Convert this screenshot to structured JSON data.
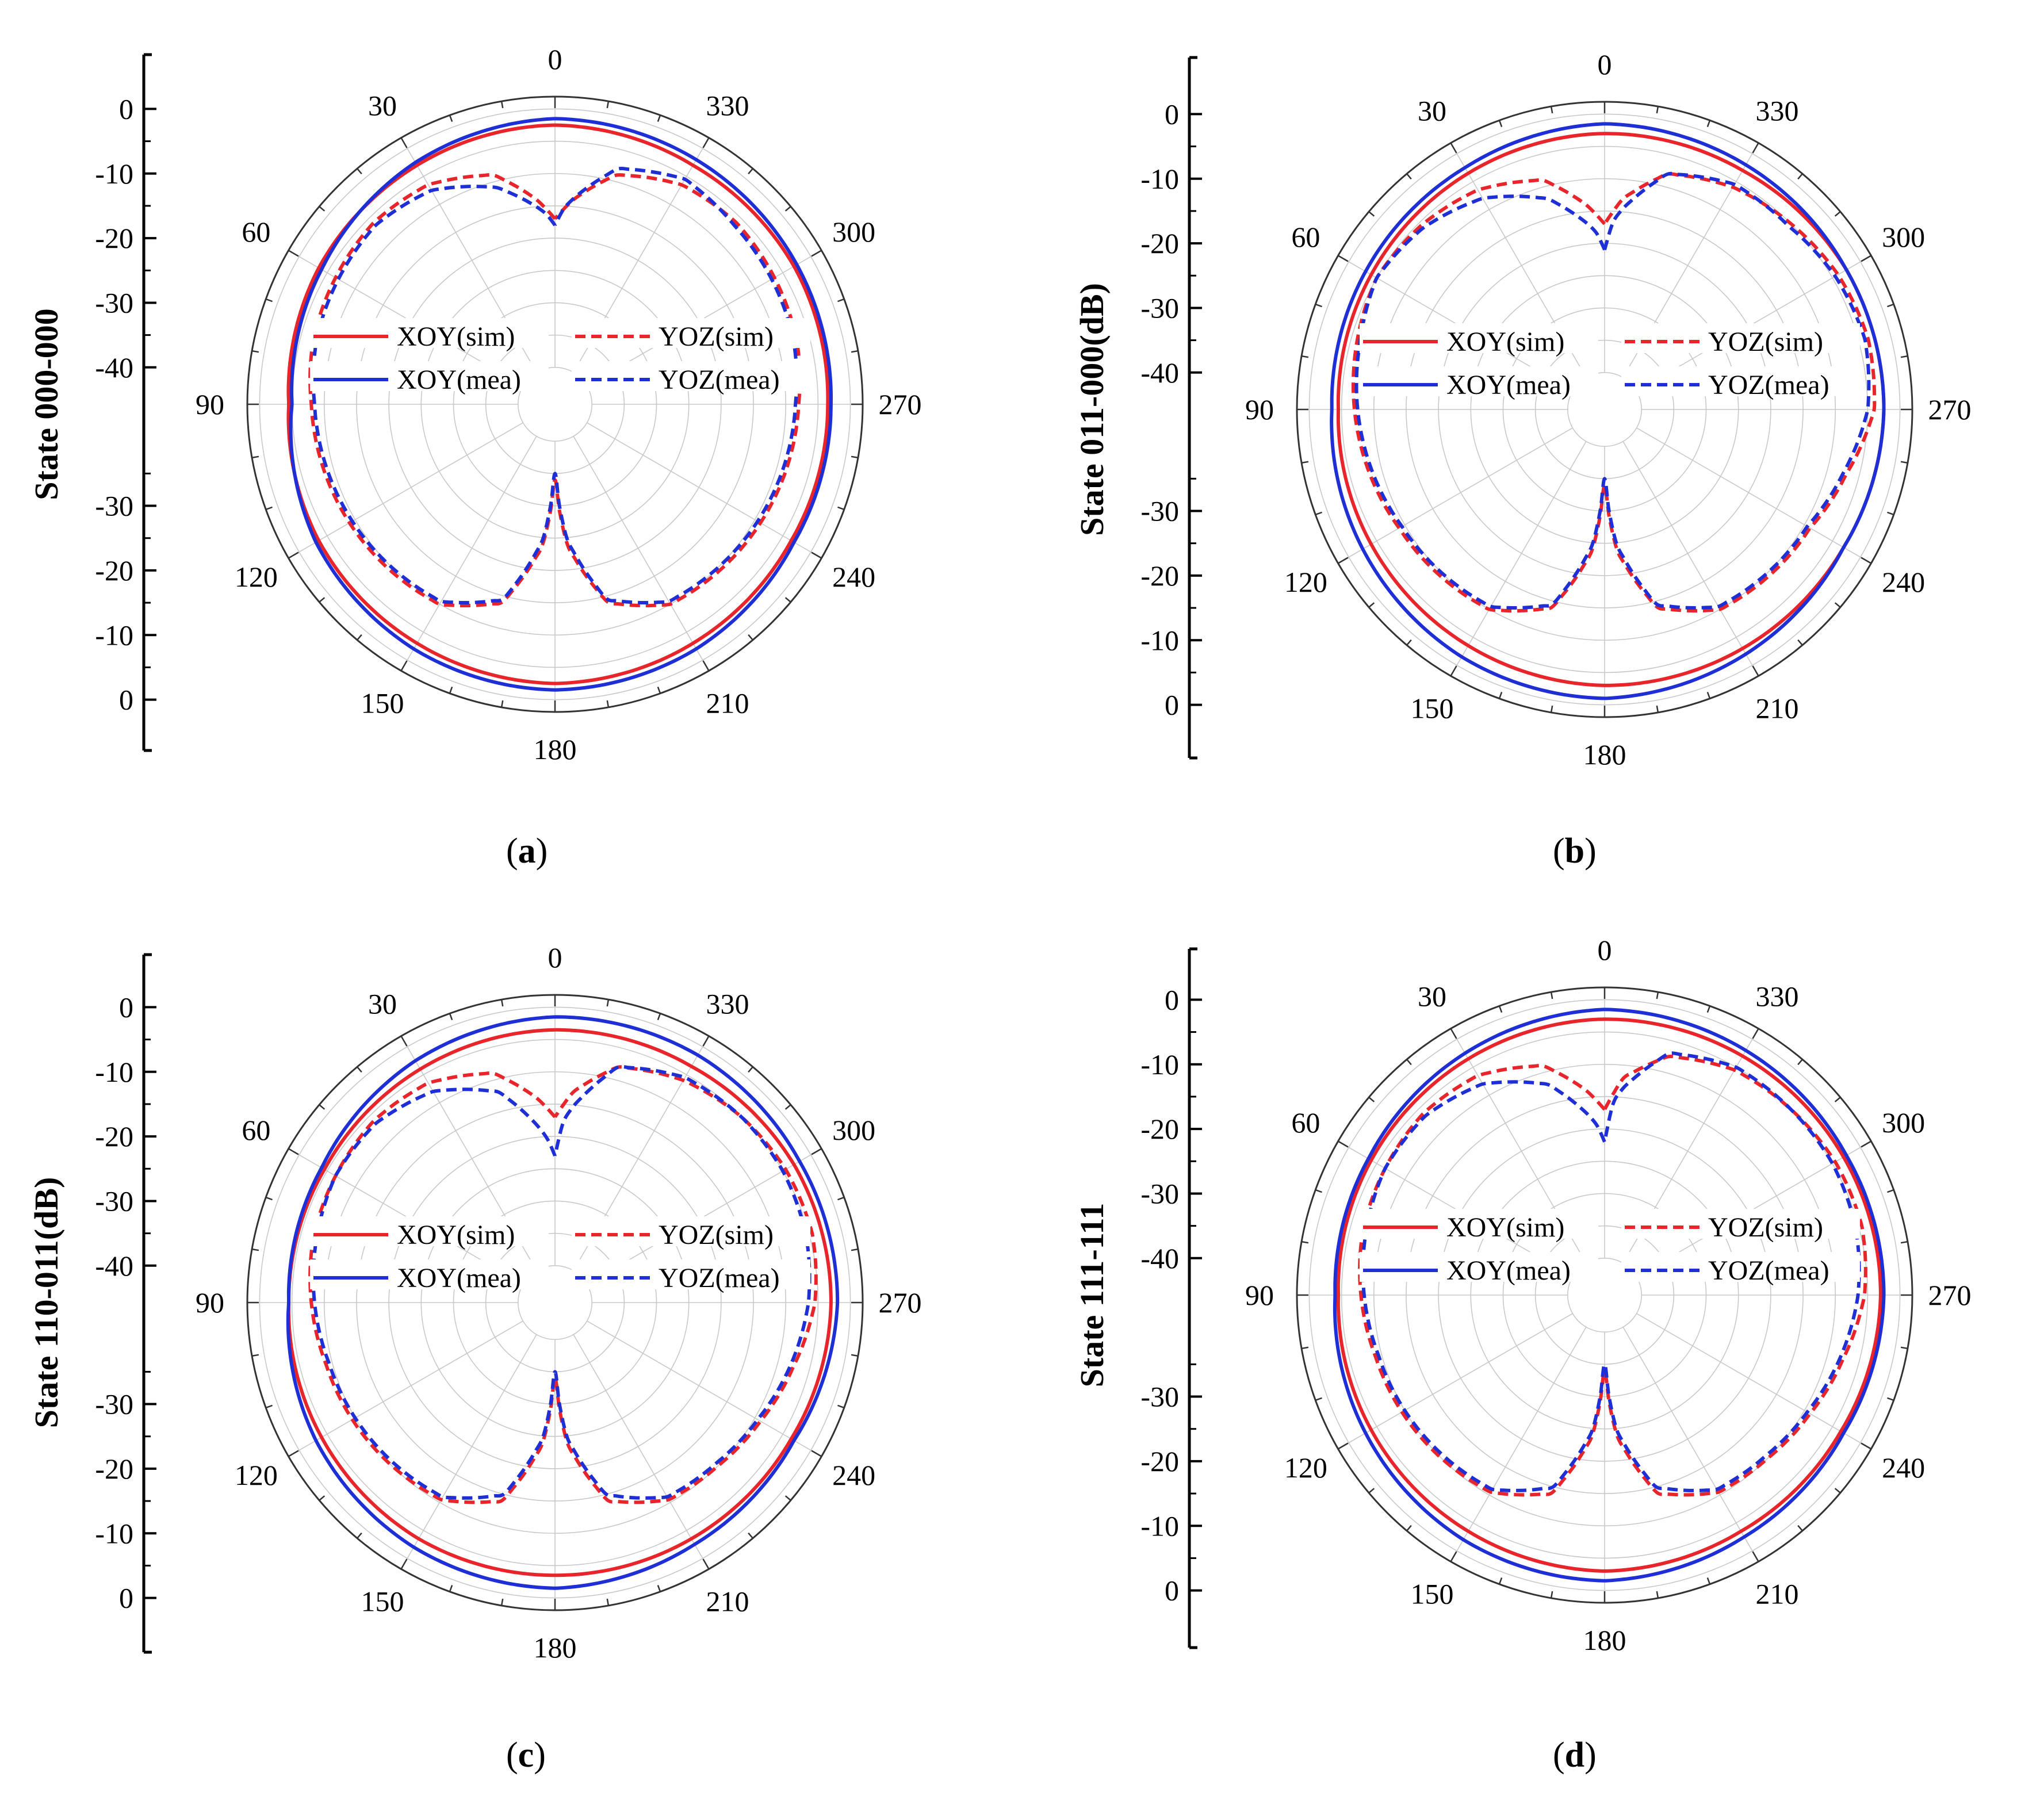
{
  "chart_data": [
    {
      "id": "a",
      "type": "polar-line",
      "panel_label": "a",
      "ylabel": "State 000-000",
      "angle_tick_labels": [
        "0",
        "30",
        "60",
        "90",
        "120",
        "150",
        "180",
        "210",
        "240",
        "270",
        "300",
        "330"
      ],
      "radial_tick_labels_upper": [
        "0",
        "-10",
        "-20",
        "-30",
        "-40"
      ],
      "radial_tick_labels_lower": [
        "-30",
        "-20",
        "-10",
        "0"
      ],
      "radial_range_db": [
        -40,
        0
      ],
      "legend": [
        "XOY(sim)",
        "XOY(mea)",
        "YOZ(sim)",
        "YOZ(mea)"
      ],
      "series": [
        {
          "name": "XOY(sim)",
          "color": "#e8252b",
          "dash": false,
          "angles": [
            0,
            30,
            60,
            90,
            120,
            150,
            180,
            210,
            240,
            270,
            300,
            330,
            360
          ],
          "values": [
            -2.5,
            -3,
            -3.5,
            -4.5,
            -3.5,
            -3,
            -2.5,
            -3,
            -3.5,
            -3.5,
            -3,
            -3,
            -2.5
          ]
        },
        {
          "name": "XOY(mea)",
          "color": "#1f2fd6",
          "dash": false,
          "angles": [
            0,
            30,
            60,
            90,
            120,
            150,
            180,
            210,
            240,
            270,
            300,
            330,
            360
          ],
          "values": [
            -1.5,
            -2.5,
            -4,
            -5,
            -3,
            -2,
            -1.5,
            -2,
            -3,
            -3,
            -2.5,
            -2,
            -1.5
          ]
        },
        {
          "name": "YOZ(sim)",
          "color": "#e8252b",
          "dash": true,
          "angles": [
            0,
            5,
            15,
            30,
            45,
            60,
            75,
            90,
            105,
            120,
            135,
            150,
            165,
            175,
            180,
            185,
            195,
            210,
            225,
            240,
            255,
            270,
            285,
            300,
            315,
            330,
            345,
            355,
            360
          ],
          "values": [
            -17,
            -14,
            -9,
            -6.5,
            -6,
            -6.5,
            -7,
            -8,
            -8.5,
            -9,
            -9.5,
            -10,
            -14,
            -24,
            -34,
            -24,
            -14,
            -10,
            -9.5,
            -9,
            -8.5,
            -8,
            -7,
            -6.5,
            -6,
            -6.5,
            -9,
            -14,
            -17
          ]
        },
        {
          "name": "YOZ(mea)",
          "color": "#1f2fd6",
          "dash": true,
          "angles": [
            0,
            3,
            15,
            30,
            45,
            60,
            75,
            90,
            105,
            120,
            135,
            150,
            165,
            175,
            180,
            185,
            195,
            210,
            225,
            240,
            255,
            270,
            285,
            300,
            315,
            330,
            345,
            357,
            360
          ],
          "values": [
            -18,
            -16,
            -11,
            -7.5,
            -6.5,
            -7,
            -7.5,
            -8.5,
            -9,
            -9.5,
            -10,
            -10.5,
            -14.5,
            -25,
            -35,
            -25,
            -14.5,
            -10.5,
            -10,
            -9.5,
            -9,
            -8.5,
            -7.5,
            -7,
            -6.5,
            -5.5,
            -8,
            -15,
            -18
          ]
        }
      ]
    },
    {
      "id": "b",
      "type": "polar-line",
      "panel_label": "b",
      "ylabel": "State 011-000(dB)",
      "angle_tick_labels": [
        "0",
        "30",
        "60",
        "90",
        "120",
        "150",
        "180",
        "210",
        "240",
        "270",
        "300",
        "330"
      ],
      "radial_tick_labels_upper": [
        "0",
        "-10",
        "-20",
        "-30",
        "-40"
      ],
      "radial_tick_labels_lower": [
        "-30",
        "-20",
        "-10",
        "0"
      ],
      "radial_range_db": [
        -40,
        0
      ],
      "legend": [
        "XOY(sim)",
        "XOY(mea)",
        "YOZ(sim)",
        "YOZ(mea)"
      ],
      "series": [
        {
          "name": "XOY(sim)",
          "color": "#e8252b",
          "dash": false,
          "angles": [
            0,
            30,
            60,
            90,
            120,
            150,
            180,
            210,
            240,
            270,
            300,
            330,
            360
          ],
          "values": [
            -3,
            -3.5,
            -4,
            -4.5,
            -4,
            -3.5,
            -3,
            -3,
            -3,
            -2.5,
            -2.5,
            -3,
            -3
          ]
        },
        {
          "name": "XOY(mea)",
          "color": "#1f2fd6",
          "dash": false,
          "angles": [
            0,
            30,
            60,
            90,
            120,
            150,
            180,
            210,
            240,
            270,
            300,
            330,
            360
          ],
          "values": [
            -1.5,
            -2.5,
            -3,
            -3.5,
            -2.5,
            -1.5,
            -1,
            -2,
            -3,
            -2.5,
            -2.5,
            -2,
            -1.5
          ]
        },
        {
          "name": "YOZ(sim)",
          "color": "#e8252b",
          "dash": true,
          "angles": [
            0,
            5,
            15,
            30,
            45,
            60,
            75,
            90,
            105,
            120,
            135,
            150,
            165,
            175,
            180,
            185,
            195,
            210,
            225,
            240,
            255,
            270,
            285,
            300,
            315,
            330,
            345,
            355,
            360
          ],
          "values": [
            -17,
            -14,
            -9,
            -6.5,
            -5.5,
            -5,
            -6,
            -7,
            -8,
            -9,
            -9.5,
            -10,
            -14,
            -24,
            -34,
            -24,
            -14,
            -10,
            -9.5,
            -9,
            -7,
            -4,
            -3.5,
            -4,
            -5,
            -6,
            -8,
            -13,
            -17
          ]
        },
        {
          "name": "YOZ(mea)",
          "color": "#1f2fd6",
          "dash": true,
          "angles": [
            0,
            3,
            15,
            30,
            45,
            60,
            75,
            90,
            105,
            120,
            135,
            150,
            165,
            175,
            180,
            185,
            195,
            210,
            225,
            240,
            255,
            270,
            285,
            300,
            315,
            330,
            345,
            357,
            360
          ],
          "values": [
            -21,
            -18,
            -12,
            -8,
            -6,
            -5,
            -6.5,
            -7.5,
            -8.5,
            -9.5,
            -10,
            -10.5,
            -14.5,
            -25,
            -35,
            -25,
            -14.5,
            -10.5,
            -10,
            -9.5,
            -7.5,
            -5,
            -4,
            -4.5,
            -5.5,
            -5.5,
            -8,
            -16,
            -21
          ]
        }
      ]
    },
    {
      "id": "c",
      "type": "polar-line",
      "panel_label": "c",
      "ylabel": "State 110-011(dB)",
      "angle_tick_labels": [
        "0",
        "30",
        "60",
        "90",
        "120",
        "150",
        "180",
        "210",
        "240",
        "270",
        "300",
        "330"
      ],
      "radial_tick_labels_upper": [
        "0",
        "-10",
        "-20",
        "-30",
        "-40"
      ],
      "radial_tick_labels_lower": [
        "-30",
        "-20",
        "-10",
        "0"
      ],
      "radial_range_db": [
        -40,
        0
      ],
      "legend": [
        "XOY(sim)",
        "XOY(mea)",
        "YOZ(sim)",
        "YOZ(mea)"
      ],
      "series": [
        {
          "name": "XOY(sim)",
          "color": "#e8252b",
          "dash": false,
          "angles": [
            0,
            30,
            60,
            90,
            120,
            150,
            180,
            210,
            240,
            270,
            300,
            330,
            360
          ],
          "values": [
            -3.5,
            -4,
            -4.5,
            -4.5,
            -4,
            -3.5,
            -3.5,
            -3.5,
            -3.5,
            -3,
            -3,
            -3.5,
            -3.5
          ]
        },
        {
          "name": "XOY(mea)",
          "color": "#1f2fd6",
          "dash": false,
          "angles": [
            0,
            30,
            60,
            90,
            120,
            150,
            180,
            210,
            240,
            270,
            300,
            330,
            360
          ],
          "values": [
            -1.5,
            -2.5,
            -4,
            -4.5,
            -3,
            -2,
            -1.5,
            -2.5,
            -3,
            -2,
            -2,
            -1.5,
            -1.5
          ]
        },
        {
          "name": "YOZ(sim)",
          "color": "#e8252b",
          "dash": true,
          "angles": [
            0,
            5,
            15,
            30,
            45,
            60,
            75,
            90,
            105,
            120,
            135,
            150,
            165,
            175,
            180,
            185,
            195,
            210,
            225,
            240,
            255,
            270,
            285,
            300,
            315,
            330,
            345,
            355,
            360
          ],
          "values": [
            -17,
            -14,
            -9,
            -6.5,
            -6,
            -6.5,
            -7,
            -8,
            -9,
            -9.5,
            -10,
            -10.5,
            -14,
            -24,
            -34,
            -24,
            -14,
            -10.5,
            -10,
            -9,
            -7.5,
            -5.5,
            -4.5,
            -4.5,
            -5,
            -6,
            -8,
            -13,
            -17
          ]
        },
        {
          "name": "YOZ(mea)",
          "color": "#1f2fd6",
          "dash": true,
          "angles": [
            0,
            3,
            15,
            30,
            45,
            60,
            75,
            90,
            105,
            120,
            135,
            150,
            165,
            175,
            180,
            185,
            195,
            210,
            225,
            240,
            255,
            270,
            285,
            300,
            315,
            330,
            345,
            357,
            360
          ],
          "values": [
            -23,
            -20,
            -12,
            -8,
            -6.5,
            -6.5,
            -7.5,
            -8.5,
            -9.5,
            -10,
            -10.5,
            -11,
            -15,
            -25,
            -35,
            -25,
            -15,
            -11,
            -10.5,
            -9.5,
            -8,
            -6.5,
            -5.5,
            -5,
            -5,
            -5.5,
            -8,
            -17,
            -23
          ]
        }
      ]
    },
    {
      "id": "d",
      "type": "polar-line",
      "panel_label": "d",
      "ylabel": "State 111-111",
      "angle_tick_labels": [
        "0",
        "30",
        "60",
        "90",
        "120",
        "150",
        "180",
        "210",
        "240",
        "270",
        "300",
        "330"
      ],
      "radial_tick_labels_upper": [
        "0",
        "-10",
        "-20",
        "-30",
        "-40"
      ],
      "radial_tick_labels_lower": [
        "-30",
        "-20",
        "-10",
        "0"
      ],
      "radial_range_db": [
        -40,
        0
      ],
      "legend": [
        "XOY(sim)",
        "XOY(mea)",
        "YOZ(sim)",
        "YOZ(mea)"
      ],
      "series": [
        {
          "name": "XOY(sim)",
          "color": "#e8252b",
          "dash": false,
          "angles": [
            0,
            30,
            60,
            90,
            120,
            150,
            180,
            210,
            240,
            270,
            300,
            330,
            360
          ],
          "values": [
            -3,
            -3.5,
            -4,
            -4.5,
            -4,
            -3.5,
            -3,
            -3.5,
            -3.5,
            -3,
            -3,
            -3,
            -3
          ]
        },
        {
          "name": "XOY(mea)",
          "color": "#1f2fd6",
          "dash": false,
          "angles": [
            0,
            30,
            60,
            90,
            120,
            150,
            180,
            210,
            240,
            270,
            300,
            330,
            360
          ],
          "values": [
            -1.5,
            -2.5,
            -3.5,
            -4,
            -3,
            -2,
            -1.5,
            -2.5,
            -3,
            -2.5,
            -2.5,
            -2,
            -1.5
          ]
        },
        {
          "name": "YOZ(sim)",
          "color": "#e8252b",
          "dash": true,
          "angles": [
            0,
            5,
            15,
            30,
            45,
            60,
            75,
            90,
            105,
            120,
            135,
            150,
            165,
            175,
            180,
            185,
            195,
            210,
            225,
            240,
            255,
            270,
            285,
            300,
            315,
            330,
            345,
            355,
            360
          ],
          "values": [
            -17,
            -14,
            -9,
            -6.5,
            -6,
            -6.5,
            -7,
            -8,
            -9,
            -9.5,
            -10,
            -10.5,
            -14,
            -24,
            -34,
            -24,
            -14,
            -10.5,
            -10,
            -9,
            -7.5,
            -5.5,
            -4.5,
            -4.5,
            -5,
            -5.5,
            -7.5,
            -12,
            -17
          ]
        },
        {
          "name": "YOZ(mea)",
          "color": "#1f2fd6",
          "dash": true,
          "angles": [
            0,
            3,
            15,
            30,
            45,
            60,
            75,
            90,
            105,
            120,
            135,
            150,
            165,
            175,
            180,
            185,
            195,
            210,
            225,
            240,
            255,
            270,
            285,
            300,
            315,
            330,
            345,
            357,
            360
          ],
          "values": [
            -22,
            -19,
            -12,
            -8,
            -6.5,
            -6.5,
            -7.5,
            -8.5,
            -9.5,
            -10,
            -10.5,
            -11,
            -15,
            -25,
            -35,
            -25,
            -15,
            -11,
            -10.5,
            -9.5,
            -8,
            -6.5,
            -5.5,
            -5,
            -5,
            -5,
            -7,
            -15,
            -22
          ]
        }
      ]
    }
  ]
}
